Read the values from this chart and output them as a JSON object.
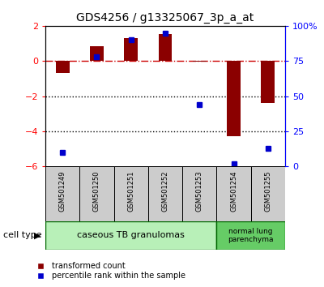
{
  "title": "GDS4256 / g13325067_3p_a_at",
  "samples": [
    "GSM501249",
    "GSM501250",
    "GSM501251",
    "GSM501252",
    "GSM501253",
    "GSM501254",
    "GSM501255"
  ],
  "red_values": [
    -0.7,
    0.85,
    1.3,
    1.55,
    -0.05,
    -4.3,
    -2.4
  ],
  "blue_percentiles": [
    10,
    78,
    90,
    95,
    44,
    2,
    13
  ],
  "ylim_left": [
    -6,
    2
  ],
  "ylim_right": [
    0,
    100
  ],
  "right_ticks": [
    0,
    25,
    50,
    75,
    100
  ],
  "right_tick_labels": [
    "0",
    "25",
    "50",
    "75",
    "100%"
  ],
  "left_ticks": [
    -6,
    -4,
    -2,
    0,
    2
  ],
  "cell_types": [
    {
      "label": "caseous TB granulomas",
      "n_samples": 5,
      "color": "#b8f0b8"
    },
    {
      "label": "normal lung\nparenchyma",
      "n_samples": 2,
      "color": "#66cc66"
    }
  ],
  "bar_color": "#8B0000",
  "dot_color": "#0000CC",
  "hline_color": "#CC0000",
  "dotted_line_color": "#000000",
  "bg_color": "#ffffff",
  "tick_area_color": "#cccccc",
  "legend_red_label": "transformed count",
  "legend_blue_label": "percentile rank within the sample"
}
